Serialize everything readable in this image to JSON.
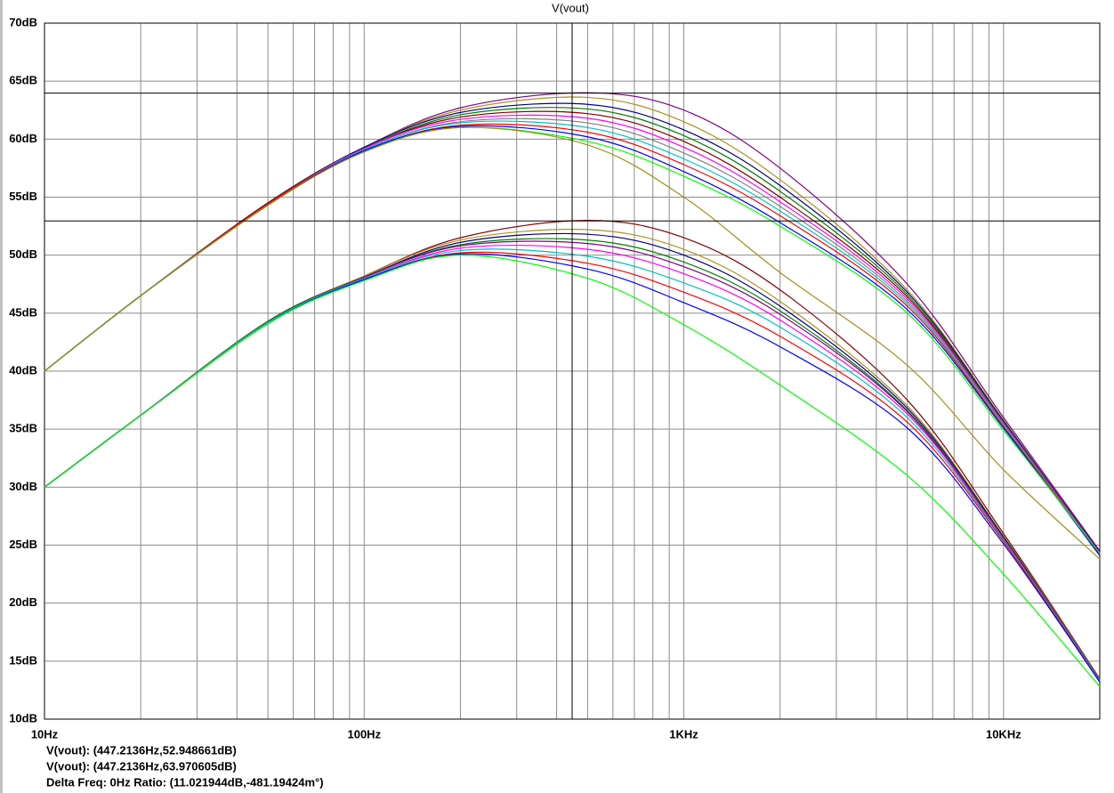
{
  "chart_data": {
    "type": "line",
    "title": "V(vout)",
    "title_color": "#00c000",
    "x_scale": "log",
    "grid": true,
    "xlim": [
      10,
      20000
    ],
    "ylim": [
      10,
      70
    ],
    "xticks": [
      {
        "value": 10,
        "label": "10Hz"
      },
      {
        "value": 100,
        "label": "100Hz"
      },
      {
        "value": 1000,
        "label": "1KHz"
      },
      {
        "value": 10000,
        "label": "10KHz"
      }
    ],
    "yticks": [
      {
        "value": 10,
        "label": "10dB"
      },
      {
        "value": 15,
        "label": "15dB"
      },
      {
        "value": 20,
        "label": "20dB"
      },
      {
        "value": 25,
        "label": "25dB"
      },
      {
        "value": 30,
        "label": "30dB"
      },
      {
        "value": 35,
        "label": "35dB"
      },
      {
        "value": 40,
        "label": "40dB"
      },
      {
        "value": 45,
        "label": "45dB"
      },
      {
        "value": 50,
        "label": "50dB"
      },
      {
        "value": 55,
        "label": "55dB"
      },
      {
        "value": 60,
        "label": "60dB"
      },
      {
        "value": 65,
        "label": "65dB"
      },
      {
        "value": 70,
        "label": "70dB"
      }
    ],
    "x": [
      10,
      20,
      50,
      100,
      200,
      500,
      1000,
      2000,
      5000,
      10000,
      20000
    ],
    "series": [
      {
        "color": "#800080",
        "values": [
          40,
          46.5,
          54.5,
          59.3,
          62.7,
          64.0,
          62.5,
          57.5,
          47.5,
          36,
          24.5
        ]
      },
      {
        "color": "#b09020",
        "values": [
          40,
          46.5,
          54.5,
          59.3,
          62.5,
          63.6,
          61.5,
          56.5,
          47,
          35.8,
          24.4
        ]
      },
      {
        "color": "#000080",
        "values": [
          40,
          46.5,
          54.5,
          59.3,
          62.3,
          63.0,
          60.8,
          56,
          46.8,
          35.7,
          24.4
        ]
      },
      {
        "color": "#008000",
        "values": [
          40,
          46.5,
          54.5,
          59.2,
          62.1,
          62.6,
          60.3,
          55.5,
          46.6,
          35.6,
          24.3
        ]
      },
      {
        "color": "#800000",
        "values": [
          40,
          46.5,
          54.5,
          59.2,
          61.9,
          62.2,
          59.8,
          55,
          46.4,
          35.5,
          24.3
        ]
      },
      {
        "color": "#ff00ff",
        "values": [
          40,
          46.5,
          54.4,
          59.2,
          61.7,
          61.8,
          59.3,
          54.6,
          46.2,
          35.5,
          24.3
        ]
      },
      {
        "color": "#808080",
        "values": [
          40,
          46.5,
          54.4,
          59.1,
          61.5,
          61.4,
          58.8,
          54.2,
          46,
          35.4,
          24.2
        ]
      },
      {
        "color": "#00c0c0",
        "values": [
          40,
          46.5,
          54.4,
          59.1,
          61.4,
          61.0,
          58.3,
          53.8,
          45.8,
          35.3,
          24.2
        ]
      },
      {
        "color": "#ff0000",
        "values": [
          40,
          46.5,
          54.4,
          59.0,
          61.2,
          60.6,
          57.8,
          53.4,
          45.6,
          35.2,
          24.2
        ]
      },
      {
        "color": "#0000ff",
        "values": [
          40,
          46.5,
          54.3,
          59.0,
          61.1,
          60.2,
          57.2,
          52.8,
          45.3,
          35.1,
          24.1
        ]
      },
      {
        "color": "#00ff00",
        "values": [
          40,
          46.5,
          54.3,
          58.9,
          61.0,
          59.8,
          56.8,
          52.5,
          45,
          34.9,
          24.3
        ]
      },
      {
        "color": "#a09020",
        "values": [
          40,
          46.5,
          54.3,
          58.9,
          61.0,
          59.5,
          55.0,
          48.5,
          40.5,
          31.5,
          23.8
        ]
      },
      {
        "color": "#800000",
        "values": [
          30,
          36.2,
          44.3,
          48.2,
          51.5,
          53.0,
          51.5,
          47,
          37.5,
          26,
          13.5
        ]
      },
      {
        "color": "#b09020",
        "values": [
          30,
          36.2,
          44.3,
          48.2,
          51.3,
          52.2,
          50.5,
          46,
          37,
          25.8,
          13.5
        ]
      },
      {
        "color": "#000080",
        "values": [
          30,
          36.2,
          44.3,
          48.1,
          51.1,
          51.8,
          50,
          45.6,
          36.8,
          25.7,
          13.4
        ]
      },
      {
        "color": "#008000",
        "values": [
          30,
          36.2,
          44.3,
          48.1,
          50.9,
          51.3,
          49.4,
          45.2,
          36.6,
          25.6,
          13.4
        ]
      },
      {
        "color": "#800080",
        "values": [
          30,
          36.2,
          44.2,
          48.1,
          50.8,
          51.0,
          49,
          44.9,
          36.5,
          25.5,
          13.4
        ]
      },
      {
        "color": "#ff00ff",
        "values": [
          30,
          36.2,
          44.2,
          48.0,
          50.6,
          50.5,
          48.4,
          44.4,
          36.3,
          25.5,
          13.3
        ]
      },
      {
        "color": "#00c0c0",
        "values": [
          30,
          36.2,
          44.2,
          48.0,
          50.4,
          49.9,
          47.6,
          43.8,
          36,
          25.4,
          13.3
        ]
      },
      {
        "color": "#ff0000",
        "values": [
          30,
          36.2,
          44.1,
          47.9,
          50.2,
          49.3,
          46.8,
          43,
          35.6,
          25.3,
          13.2
        ]
      },
      {
        "color": "#0000ff",
        "values": [
          30,
          36.2,
          44.1,
          47.9,
          50.1,
          48.8,
          45.9,
          42.1,
          35.1,
          25.1,
          13.2
        ]
      },
      {
        "color": "#00ff00",
        "values": [
          30,
          36.2,
          44.1,
          47.8,
          50.0,
          48.0,
          44.0,
          38.8,
          31.0,
          22.5,
          12.8
        ]
      }
    ],
    "cursors": [
      {
        "x": 447.2136,
        "y": 52.948661,
        "label": "V(vout): (447.2136Hz,52.948661dB)"
      },
      {
        "x": 447.2136,
        "y": 63.970605,
        "label": "V(vout): (447.2136Hz,63.970605dB)"
      }
    ],
    "delta_label": "Delta Freq: 0Hz Ratio: (11.021944dB,-481.19424m°)"
  }
}
